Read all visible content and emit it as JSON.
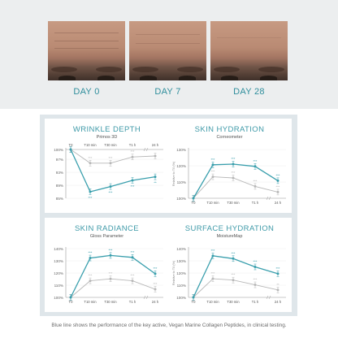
{
  "photos": {
    "days": [
      {
        "label": "DAY 0"
      },
      {
        "label": "DAY 7"
      },
      {
        "label": "DAY 28"
      }
    ]
  },
  "colors": {
    "active": "#3a9fad",
    "placebo": "#b8b8b8",
    "title": "#3f9aa8",
    "panel_bg": "#dfe6ea"
  },
  "footnote": "Blue line shows the performance of the key active, Vegan Marine Collagen Peptides, in clinical testing.",
  "chart_data": [
    {
      "type": "line",
      "title": "WRINKLE DEPTH",
      "subtitle": "Primos 3D",
      "ylabel": "",
      "yticks": [
        "100%",
        "97%",
        "93%",
        "89%",
        "85%"
      ],
      "ylim": [
        85,
        100
      ],
      "x": [
        "T0",
        "T10 min",
        "T30 min",
        "T1 h",
        "24 h"
      ],
      "series": [
        {
          "color": "#3a9fad",
          "values": [
            100,
            87,
            88.6,
            90.5,
            91.6
          ]
        },
        {
          "color": "#b8b8b8",
          "values": [
            100,
            95.8,
            95.8,
            97.7,
            98
          ]
        }
      ],
      "sig_marks": [
        {
          "series": 0,
          "labels": [
            "",
            "***",
            "***",
            "***",
            "**"
          ]
        },
        {
          "series": 1,
          "labels": [
            "",
            "***",
            "***",
            "***",
            ""
          ]
        }
      ]
    },
    {
      "type": "line",
      "title": "SKIN HYDRATION",
      "subtitle": "Corneometer",
      "ylabel": "Relative to T0 (%)",
      "yticks": [
        "130%",
        "120%",
        "110%",
        "100%"
      ],
      "ylim": [
        100,
        130
      ],
      "x": [
        "T0",
        "T10 min",
        "T30 min",
        "T1 h",
        "24 h"
      ],
      "series": [
        {
          "color": "#3a9fad",
          "values": [
            100,
            120.6,
            121,
            119.6,
            110.8
          ]
        },
        {
          "color": "#b8b8b8",
          "values": [
            100,
            113.2,
            112.5,
            107.3,
            103.8
          ]
        }
      ],
      "sig_marks": [
        {
          "series": 0,
          "labels": [
            "",
            "***",
            "***",
            "***",
            "***"
          ]
        },
        {
          "series": 1,
          "labels": [
            "",
            "***",
            "***",
            "***",
            "***"
          ]
        }
      ]
    },
    {
      "type": "line",
      "title": "SKIN RADIANCE",
      "subtitle": "Gloss Parameter",
      "ylabel": "",
      "yticks": [
        "140%",
        "130%",
        "120%",
        "110%",
        "100%"
      ],
      "ylim": [
        100,
        140
      ],
      "x": [
        "T0",
        "T10 min",
        "T30 min",
        "T1 h",
        "24 h"
      ],
      "series": [
        {
          "color": "#3a9fad",
          "values": [
            100,
            132.3,
            134.4,
            132.8,
            119.4
          ]
        },
        {
          "color": "#b8b8b8",
          "values": [
            100,
            113.6,
            115.2,
            113.6,
            106.7
          ]
        }
      ],
      "sig_marks": [
        {
          "series": 0,
          "labels": [
            "",
            "***",
            "***",
            "***",
            "***"
          ]
        },
        {
          "series": 1,
          "labels": [
            "",
            "***",
            "***",
            "***",
            "***"
          ]
        }
      ]
    },
    {
      "type": "line",
      "title": "SURFACE HYDRATION",
      "subtitle": "MoistureMap",
      "ylabel": "Relative to T0 (%)",
      "yticks": [
        "140%",
        "130%",
        "120%",
        "110%",
        "100%"
      ],
      "ylim": [
        100,
        140
      ],
      "x": [
        "T0",
        "T10 min",
        "T30 min",
        "T1 h",
        "24 h"
      ],
      "series": [
        {
          "color": "#3a9fad",
          "values": [
            100,
            134.1,
            131.8,
            125,
            119.4
          ]
        },
        {
          "color": "#b8b8b8",
          "values": [
            100,
            115.3,
            114.2,
            110.3,
            106.1
          ]
        }
      ],
      "sig_marks": [
        {
          "series": 0,
          "labels": [
            "",
            "***",
            "***",
            "***",
            "***"
          ]
        },
        {
          "series": 1,
          "labels": [
            "",
            "***",
            "***",
            "***",
            "**"
          ]
        }
      ]
    }
  ]
}
